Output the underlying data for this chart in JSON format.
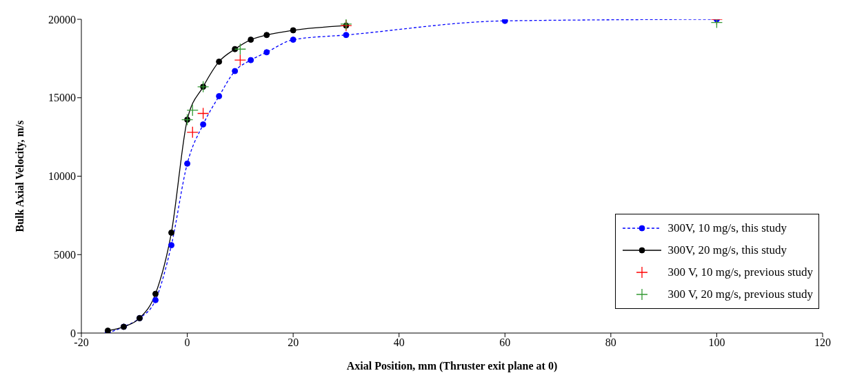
{
  "chart_data": {
    "type": "line",
    "xlabel": "Axial Position, mm (Thruster  exit plane at 0)",
    "ylabel": "Bulk Axial Velocity, m/s",
    "xlim": [
      -20,
      120
    ],
    "xticks": [
      -20,
      0,
      20,
      40,
      60,
      80,
      100,
      120
    ],
    "ylim": [
      0,
      20000
    ],
    "yticks": [
      0,
      5000,
      10000,
      15000,
      20000
    ],
    "grid": false,
    "legend": "bottom right",
    "series": [
      {
        "name": "300V, 10 mg/s, this study",
        "color": "#0000ff",
        "marker": "circle",
        "line_style": "dashed",
        "x": [
          -15,
          -12,
          -9,
          -6,
          -3,
          0,
          3,
          6,
          9,
          12,
          15,
          20,
          30,
          60,
          100
        ],
        "values": [
          0,
          400,
          950,
          2100,
          5600,
          10800,
          13300,
          15100,
          16700,
          17400,
          17900,
          18700,
          19000,
          19900,
          20000
        ]
      },
      {
        "name": "300V, 20 mg/s, this study",
        "color": "#000000",
        "marker": "circle",
        "line_style": "solid",
        "x": [
          -15,
          -12,
          -9,
          -6,
          -3,
          0,
          3,
          6,
          9,
          12,
          15,
          20,
          30
        ],
        "values": [
          150,
          400,
          950,
          2500,
          6400,
          13600,
          15700,
          17300,
          18100,
          18700,
          19000,
          19300,
          19600
        ]
      },
      {
        "name": "300 V, 10 mg/s, previous study",
        "type": "scatter",
        "color": "#ff0000",
        "marker": "cross",
        "x": [
          1,
          3,
          10,
          30,
          100
        ],
        "values": [
          12800,
          14000,
          17400,
          19600,
          20000
        ]
      },
      {
        "name": "300 V, 20 mg/s, previous study",
        "type": "scatter",
        "color": "#339933",
        "marker": "cross",
        "x": [
          0,
          1,
          3,
          10,
          30,
          100
        ],
        "values": [
          13600,
          14200,
          15700,
          18100,
          19700,
          19800
        ]
      }
    ]
  }
}
